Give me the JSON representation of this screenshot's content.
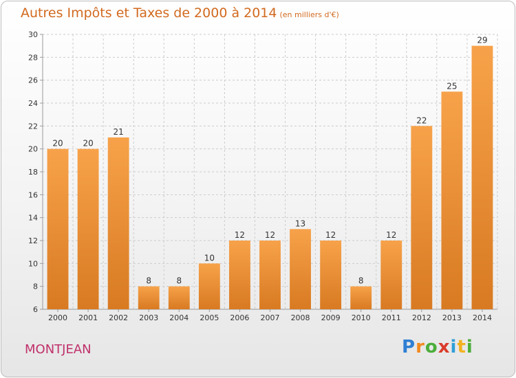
{
  "header": {
    "title": "Autres Impôts et Taxes de 2000 à 2014",
    "subtitle": "(en milliers d'€)"
  },
  "footer": {
    "city": "MONTJEAN",
    "logo": {
      "letters": [
        "P",
        "r",
        "o",
        "x",
        "i",
        "t",
        "i"
      ],
      "colors": [
        "#2f7fd3",
        "#f28a1f",
        "#4cae3a",
        "#d93c2c",
        "#2f9fd8",
        "#f2b21f",
        "#4cae3a"
      ]
    }
  },
  "chart_data": {
    "type": "bar",
    "title": "Autres Impôts et Taxes de 2000 à 2014",
    "subtitle": "(en milliers d'€)",
    "xlabel": "",
    "ylabel": "",
    "categories": [
      "2000",
      "2001",
      "2002",
      "2003",
      "2004",
      "2005",
      "2006",
      "2007",
      "2008",
      "2009",
      "2010",
      "2011",
      "2012",
      "2013",
      "2014"
    ],
    "values": [
      20,
      20,
      21,
      8,
      8,
      10,
      12,
      12,
      13,
      12,
      8,
      12,
      22,
      25,
      29
    ],
    "ylim": [
      6,
      30
    ],
    "yticks": [
      6,
      8,
      10,
      12,
      14,
      16,
      18,
      20,
      22,
      24,
      26,
      28,
      30
    ],
    "grid": true,
    "colors": {
      "bar_top": "#f7a24a",
      "bar_bottom": "#d87a22",
      "grid": "#cccccc",
      "axis": "#999999"
    }
  }
}
